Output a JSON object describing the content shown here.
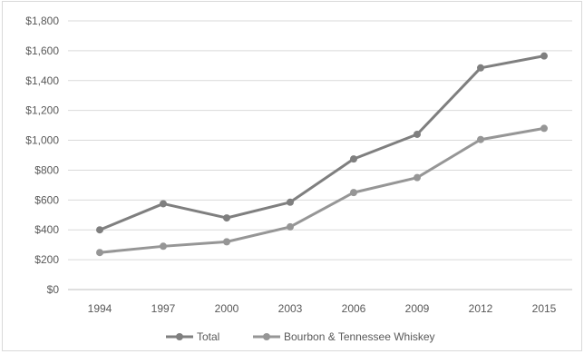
{
  "chart_data": {
    "type": "line",
    "title": "",
    "xlabel": "",
    "ylabel": "",
    "x": [
      "1994",
      "1997",
      "2000",
      "2003",
      "2006",
      "2009",
      "2012",
      "2015"
    ],
    "y_ticks": [
      "$0",
      "$200",
      "$400",
      "$600",
      "$800",
      "$1,000",
      "$1,200",
      "$1,400",
      "$1,600",
      "$1,800"
    ],
    "ylim": [
      0,
      1800
    ],
    "grid": true,
    "legend_position": "bottom",
    "series": [
      {
        "name": "Total",
        "color": "#7f7f7f",
        "values": [
          400,
          575,
          480,
          585,
          875,
          1040,
          1485,
          1565
        ]
      },
      {
        "name": "Bourbon & Tennessee Whiskey",
        "color": "#969696",
        "values": [
          248,
          290,
          320,
          420,
          650,
          750,
          1005,
          1080
        ]
      }
    ]
  }
}
